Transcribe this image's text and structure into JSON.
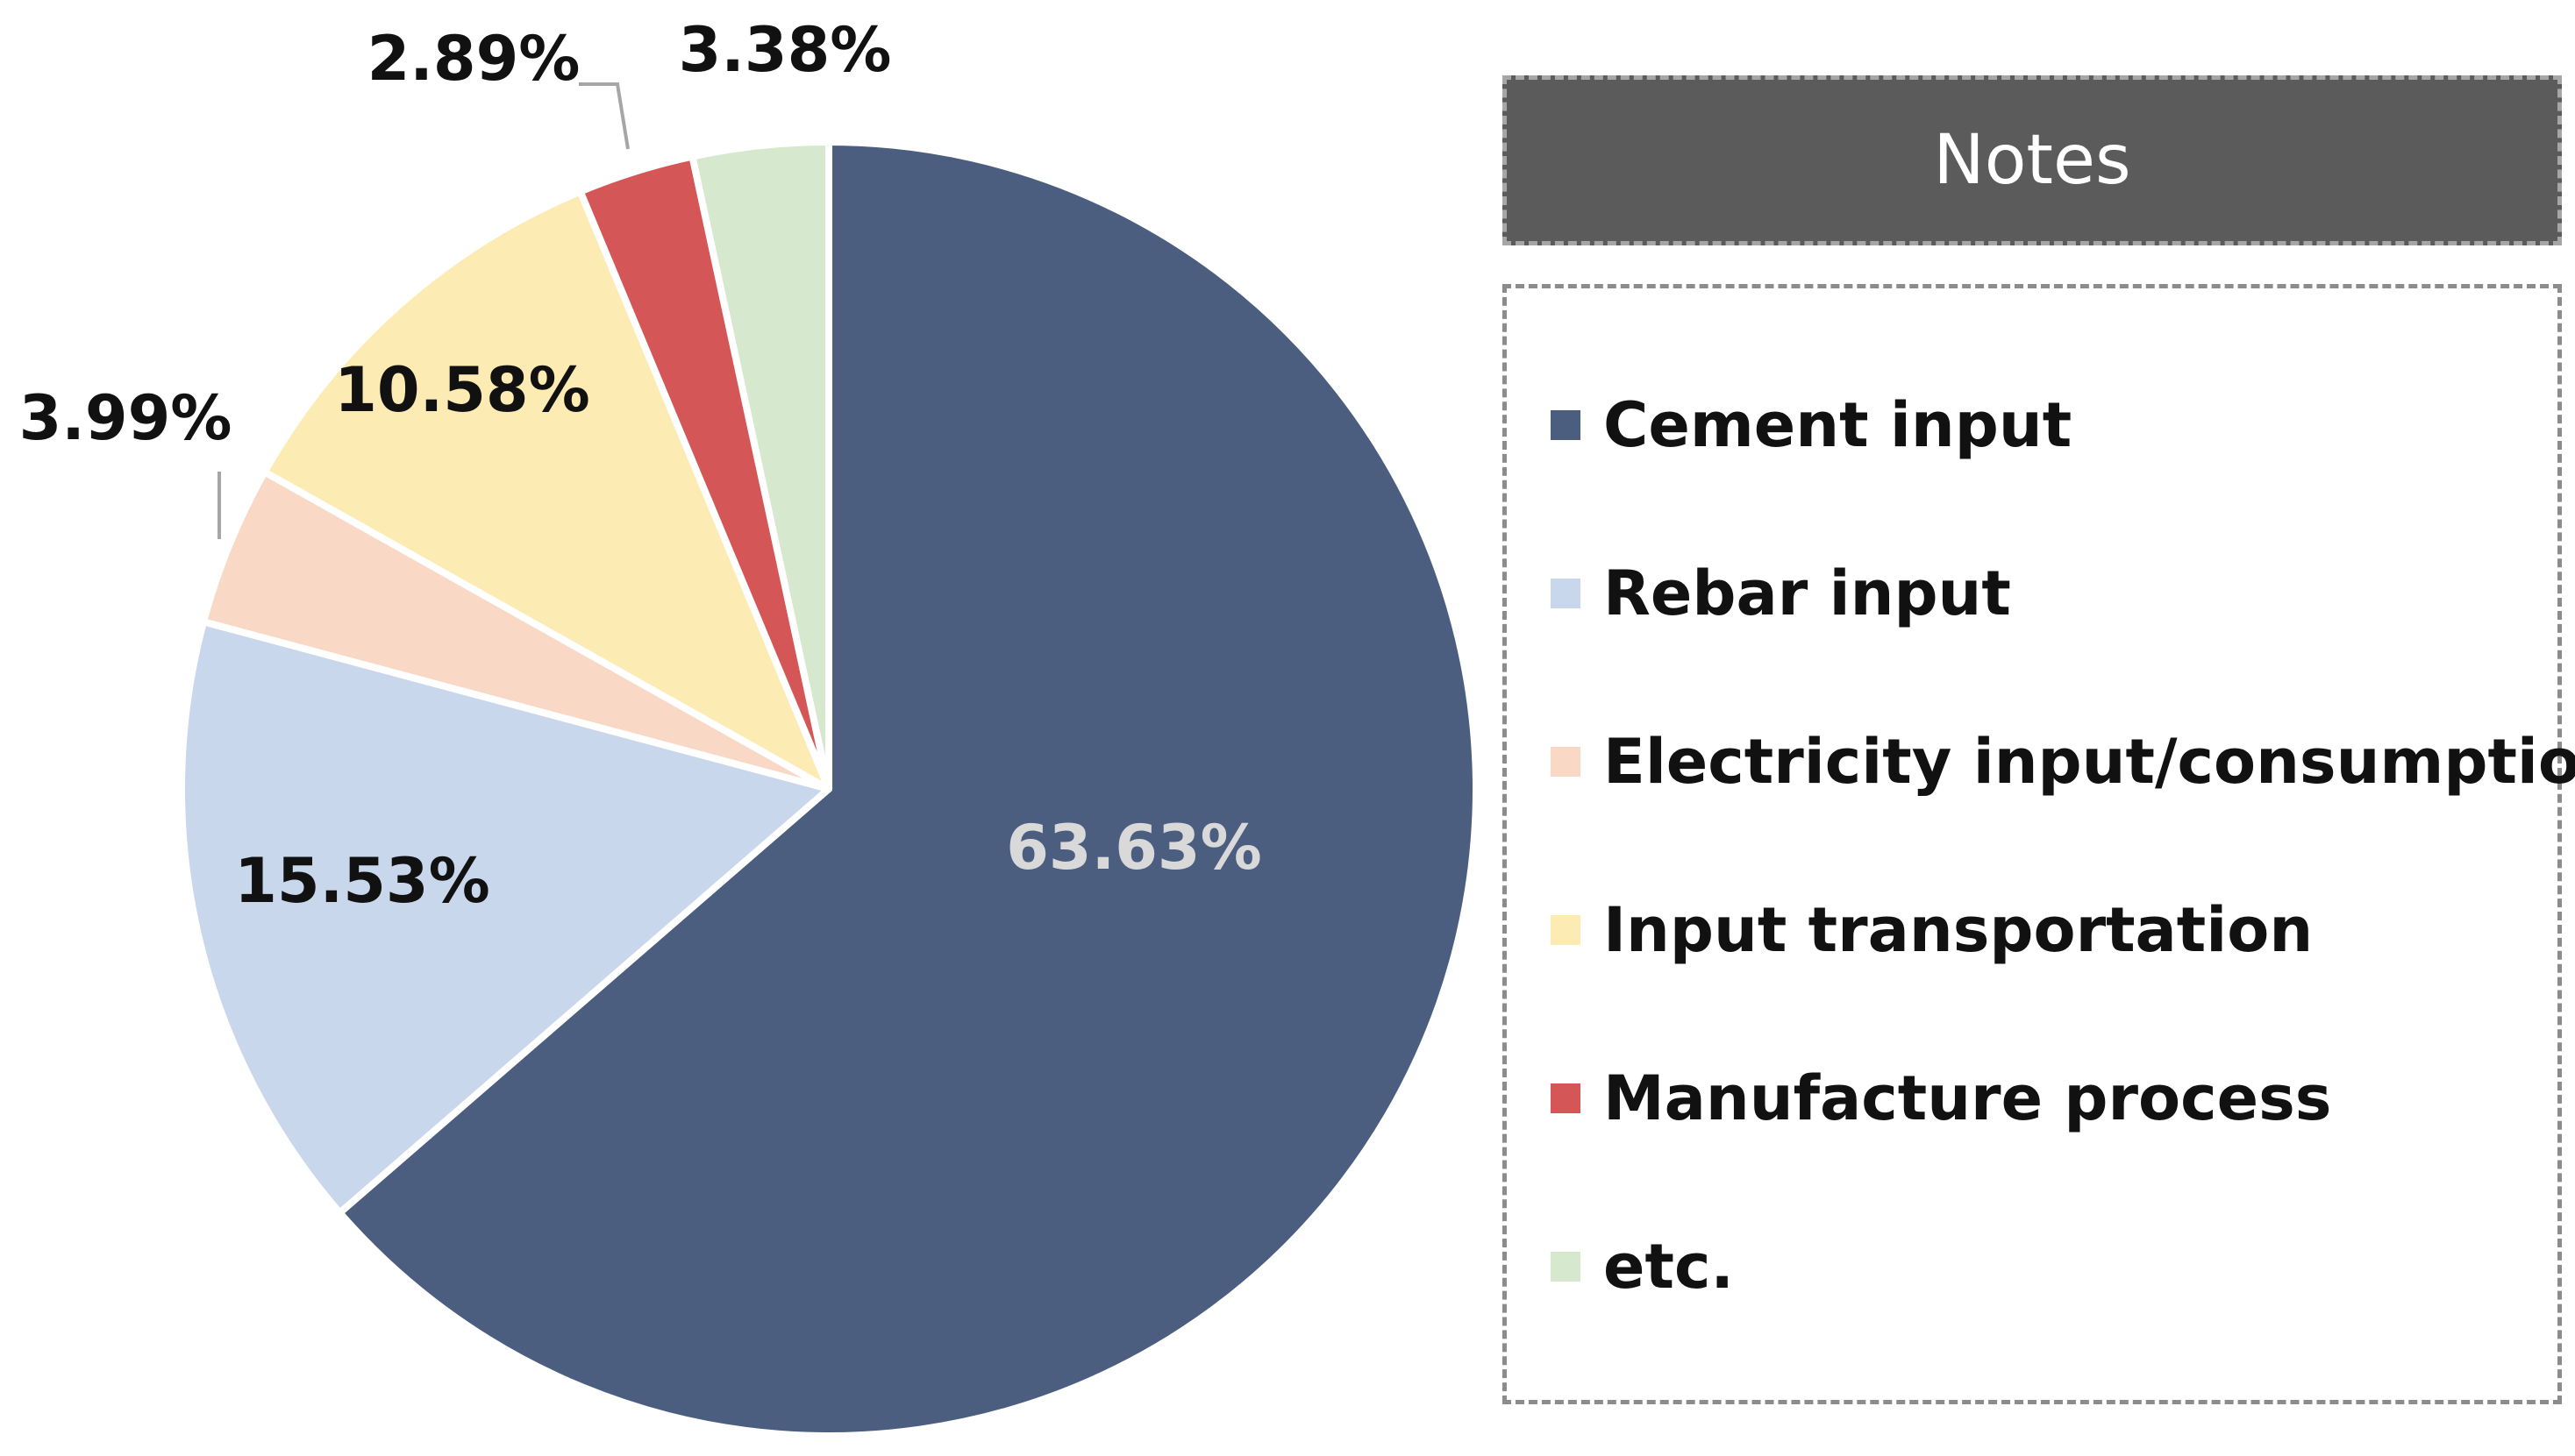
{
  "chart_data": {
    "type": "pie",
    "title": "",
    "slices": [
      {
        "name": "Cement input",
        "value": 63.63,
        "label": "63.63%",
        "color": "#4b5e80",
        "label_color": "#d9d9d9"
      },
      {
        "name": "Rebar input",
        "value": 15.53,
        "label": "15.53%",
        "color": "#c9d7ec",
        "label_color": "#111111"
      },
      {
        "name": "Electricity input/consumption",
        "value": 3.99,
        "label": "3.99%",
        "color": "#f9d8c6",
        "label_color": "#111111"
      },
      {
        "name": "Input transportation",
        "value": 10.58,
        "label": "10.58%",
        "color": "#fdebb4",
        "label_color": "#111111"
      },
      {
        "name": "Manufacture process",
        "value": 2.89,
        "label": "2.89%",
        "color": "#d45656",
        "label_color": "#111111"
      },
      {
        "name": "etc.",
        "value": 3.38,
        "label": "3.38%",
        "color": "#d6e8cd",
        "label_color": "#111111"
      }
    ],
    "legend": {
      "title": "Notes",
      "position": "right"
    }
  }
}
